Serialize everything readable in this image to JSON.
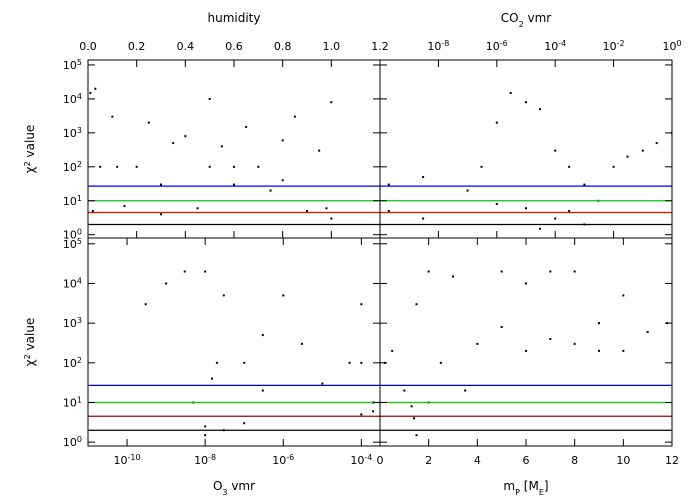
{
  "chart_data": [
    {
      "type": "scatter",
      "xlabel": [
        "humidity"
      ],
      "ylabel": [
        "χ",
        "2",
        " value"
      ],
      "xlim": [
        0,
        1.2
      ],
      "xscale": "linear",
      "xticks": [
        {
          "value": 0,
          "label": "0.0"
        },
        0.2,
        0.4,
        0.6,
        0.8,
        {
          "value": 1,
          "label": "1.0"
        },
        1.2
      ],
      "ylim": [
        0.8,
        140000
      ],
      "yscale": "log",
      "yticks": [
        {
          "value": 1,
          "label": "10",
          "power": "0"
        },
        {
          "value": 10,
          "label": "10",
          "power": "1"
        },
        {
          "value": 100,
          "label": "10",
          "power": "2"
        },
        {
          "value": 1000,
          "label": "10",
          "power": "3"
        },
        {
          "value": 10000,
          "label": "10",
          "power": "4"
        },
        {
          "value": 100000,
          "label": "10",
          "power": "5"
        }
      ],
      "hlines": [
        {
          "value": 27,
          "color": "#0000ff"
        },
        {
          "value": 10,
          "color": "#00cc00"
        },
        {
          "value": 4.5,
          "color": "#ff0000"
        },
        {
          "value": 2,
          "color": "#000000"
        }
      ],
      "series": [
        {
          "color": "#000000",
          "x": [
            0.01,
            0.02,
            0.05,
            0.1,
            0.15,
            0.2,
            0.25,
            0.3,
            0.35,
            0.4,
            0.45,
            0.5,
            0.5,
            0.55,
            0.6,
            0.65,
            0.7,
            0.75,
            0.8,
            0.85,
            0.9,
            0.95,
            1.0,
            1.0,
            0.03,
            0.12,
            0.3,
            0.6,
            0.8,
            0.98
          ],
          "y": [
            15000,
            5,
            100,
            3000,
            7,
            100,
            2000,
            30,
            500,
            800,
            6,
            100,
            10000,
            400,
            30,
            1500,
            100,
            20,
            600,
            3000,
            5,
            300,
            8000,
            3,
            20000,
            100,
            4,
            100,
            40,
            6
          ]
        }
      ]
    },
    {
      "type": "scatter",
      "xlabel": [
        "CO",
        "2",
        " vmr"
      ],
      "xlim": [
        1e-10,
        1
      ],
      "xscale": "log",
      "xticks": [
        {
          "value": 1e-08,
          "label": "10",
          "power": "-8"
        },
        {
          "value": 1e-06,
          "label": "10",
          "power": "-6"
        },
        {
          "value": 0.0001,
          "label": "10",
          "power": "-4"
        },
        {
          "value": 0.01,
          "label": "10",
          "power": "-2"
        },
        {
          "value": 1,
          "label": "10",
          "power": "0"
        }
      ],
      "ylim": [
        0.8,
        140000
      ],
      "yscale": "log",
      "yticks": [
        1,
        10,
        100,
        1000,
        10000,
        100000
      ],
      "hlines": [
        {
          "value": 27,
          "color": "#0000ff"
        },
        {
          "value": 10,
          "color": "#00cc00"
        },
        {
          "value": 4.5,
          "color": "#ff0000"
        },
        {
          "value": 2,
          "color": "#000000"
        }
      ],
      "series": [
        {
          "color": "#000000",
          "x": [
            2e-10,
            2e-10,
            3e-09,
            3e-09,
            1e-07,
            3e-07,
            1e-06,
            3e-06,
            1e-05,
            3e-05,
            0.0001,
            0.0003,
            0.001,
            0.003,
            0.01,
            0.03,
            0.1,
            0.3,
            1,
            1e-06,
            1e-05,
            0.0001,
            0.001,
            3e-05,
            0.0003
          ],
          "y": [
            5,
            30,
            3,
            50,
            20,
            100,
            2000,
            15000,
            8000,
            5000,
            300,
            100,
            30,
            10,
            100,
            200,
            300,
            500,
            1000,
            8,
            6,
            3,
            2,
            1.5,
            5
          ]
        }
      ]
    },
    {
      "type": "scatter",
      "xlabel": [
        "O",
        "3",
        " vmr"
      ],
      "ylabel": [
        "χ",
        "2",
        " value"
      ],
      "xlim": [
        1e-11,
        0.0003
      ],
      "xscale": "log",
      "xticks": [
        {
          "value": 1e-10,
          "label": "10",
          "power": "-10"
        },
        {
          "value": 1e-08,
          "label": "10",
          "power": "-8"
        },
        {
          "value": 1e-06,
          "label": "10",
          "power": "-6"
        },
        {
          "value": 0.0001,
          "label": "10",
          "power": "-4"
        }
      ],
      "ylim": [
        0.8,
        140000
      ],
      "yscale": "log",
      "yticks": [
        {
          "value": 1,
          "label": "10",
          "power": "0"
        },
        {
          "value": 10,
          "label": "10",
          "power": "1"
        },
        {
          "value": 100,
          "label": "10",
          "power": "2"
        },
        {
          "value": 1000,
          "label": "10",
          "power": "3"
        },
        {
          "value": 10000,
          "label": "10",
          "power": "4"
        },
        {
          "value": 100000,
          "label": "10",
          "power": "5"
        }
      ],
      "hlines": [
        {
          "value": 27,
          "color": "#0000ff"
        },
        {
          "value": 10,
          "color": "#00cc00"
        },
        {
          "value": 4.5,
          "color": "#aa0000"
        },
        {
          "value": 2,
          "color": "#000000"
        }
      ],
      "series": [
        {
          "color": "#000000",
          "x": [
            3e-10,
            1e-09,
            3e-09,
            1e-08,
            1e-08,
            2e-08,
            3e-08,
            1e-07,
            1e-07,
            3e-07,
            1e-06,
            3e-06,
            1e-05,
            5e-05,
            0.0001,
            0.0001,
            0.0002,
            3e-08,
            5e-09,
            1e-08,
            3e-07,
            0.0001,
            0.0002,
            1.5e-08
          ],
          "y": [
            3000,
            10000,
            20000,
            20000,
            1.5,
            100,
            5000,
            100,
            3,
            500,
            5000,
            300,
            30,
            100,
            5,
            3000,
            10,
            2,
            10,
            2.5,
            20,
            100,
            6,
            40
          ]
        }
      ]
    },
    {
      "type": "scatter",
      "xlabel": [
        "m",
        "P",
        " [M",
        "E",
        "]"
      ],
      "xlim": [
        0,
        12
      ],
      "xscale": "linear",
      "xticks": [
        0,
        2,
        4,
        6,
        8,
        10,
        12
      ],
      "ylim": [
        0.8,
        140000
      ],
      "yscale": "log",
      "yticks": [
        1,
        10,
        100,
        1000,
        10000,
        100000
      ],
      "hlines": [
        {
          "value": 27,
          "color": "#0000ff"
        },
        {
          "value": 10,
          "color": "#00cc00"
        },
        {
          "value": 4.5,
          "color": "#aa0000"
        },
        {
          "value": 2,
          "color": "#000000"
        }
      ],
      "series": [
        {
          "color": "#000000",
          "x": [
            0.2,
            0.5,
            1,
            1.3,
            1.5,
            1.5,
            2,
            2,
            2.5,
            3,
            3.5,
            4,
            5,
            5,
            6,
            6,
            7,
            7,
            8,
            8,
            9,
            9,
            10,
            10,
            11,
            11.8,
            1.4
          ],
          "y": [
            100,
            200,
            20,
            8,
            1.5,
            3000,
            10,
            20000,
            100,
            15000,
            20,
            300,
            800,
            20000,
            200,
            10000,
            400,
            20000,
            300,
            20000,
            200,
            1000,
            200,
            5000,
            600,
            1000,
            4
          ]
        }
      ]
    }
  ]
}
